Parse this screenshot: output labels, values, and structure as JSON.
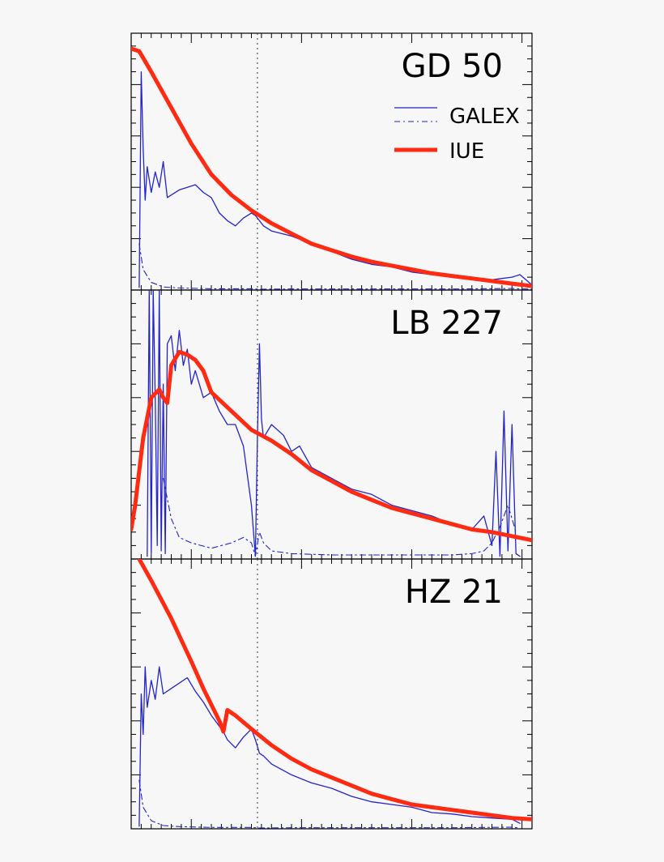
{
  "chart_data": [
    {
      "type": "line",
      "title": "GD 50",
      "legend": {
        "position": "top-right",
        "entries": [
          "GALEX",
          "IUE"
        ]
      },
      "xlim": [
        0,
        1
      ],
      "ylim": [
        0,
        1
      ],
      "grid": false,
      "marker_line_x": 0.315,
      "series": [
        {
          "name": "IUE",
          "color": "#ff2a12",
          "style": "solid-thick",
          "x": [
            0,
            0.02,
            0.05,
            0.1,
            0.15,
            0.2,
            0.25,
            0.3,
            0.35,
            0.4,
            0.45,
            0.5,
            0.55,
            0.6,
            0.65,
            0.7,
            0.75,
            0.8,
            0.85,
            0.9,
            0.95,
            1
          ],
          "y": [
            0.94,
            0.93,
            0.85,
            0.71,
            0.57,
            0.45,
            0.37,
            0.31,
            0.26,
            0.22,
            0.18,
            0.155,
            0.13,
            0.11,
            0.095,
            0.08,
            0.065,
            0.055,
            0.045,
            0.035,
            0.025,
            0.015
          ]
        },
        {
          "name": "GALEX",
          "color": "#2323cc",
          "style": "solid-thin",
          "x": [
            0.02,
            0.025,
            0.03,
            0.035,
            0.04,
            0.05,
            0.06,
            0.07,
            0.08,
            0.09,
            0.1,
            0.12,
            0.14,
            0.16,
            0.18,
            0.2,
            0.22,
            0.24,
            0.26,
            0.28,
            0.3,
            0.31,
            0.32,
            0.33,
            0.35,
            0.4,
            0.45,
            0.5,
            0.55,
            0.6,
            0.65,
            0.7,
            0.75,
            0.8,
            0.85,
            0.9,
            0.95,
            0.97,
            1
          ],
          "y": [
            0.01,
            0.85,
            0.55,
            0.35,
            0.48,
            0.38,
            0.46,
            0.4,
            0.5,
            0.36,
            0.37,
            0.39,
            0.4,
            0.41,
            0.38,
            0.36,
            0.3,
            0.27,
            0.25,
            0.28,
            0.3,
            0.29,
            0.27,
            0.25,
            0.23,
            0.21,
            0.18,
            0.15,
            0.12,
            0.1,
            0.09,
            0.07,
            0.06,
            0.05,
            0.04,
            0.04,
            0.05,
            0.06,
            0.02
          ]
        },
        {
          "name": "GALEX",
          "color": "#2323cc",
          "style": "dash-dot",
          "x": [
            0.02,
            0.03,
            0.05,
            0.08,
            0.12,
            0.2,
            0.3,
            0.31,
            0.32,
            0.4,
            0.6,
            0.8,
            0.95,
            1
          ],
          "y": [
            0.18,
            0.08,
            0.03,
            0.012,
            0.008,
            0.005,
            0.005,
            0.004,
            0.003,
            0.004,
            0.004,
            0.004,
            0.006,
            0.003
          ]
        }
      ]
    },
    {
      "type": "line",
      "title": "LB 227",
      "xlim": [
        0,
        1
      ],
      "ylim": [
        0,
        1
      ],
      "grid": false,
      "marker_line_x": 0.315,
      "series": [
        {
          "name": "IUE",
          "color": "#ff2a12",
          "style": "solid-thick",
          "x": [
            0,
            0.01,
            0.03,
            0.05,
            0.07,
            0.08,
            0.09,
            0.1,
            0.12,
            0.14,
            0.16,
            0.18,
            0.2,
            0.25,
            0.3,
            0.35,
            0.4,
            0.45,
            0.5,
            0.55,
            0.6,
            0.65,
            0.7,
            0.75,
            0.8,
            0.85,
            0.9,
            0.95,
            1
          ],
          "y": [
            0.11,
            0.2,
            0.45,
            0.6,
            0.63,
            0.6,
            0.58,
            0.72,
            0.77,
            0.76,
            0.74,
            0.7,
            0.62,
            0.55,
            0.48,
            0.44,
            0.39,
            0.33,
            0.29,
            0.25,
            0.22,
            0.19,
            0.17,
            0.15,
            0.13,
            0.11,
            0.1,
            0.085,
            0.07
          ]
        },
        {
          "name": "GALEX",
          "color": "#2323cc",
          "style": "solid-thin",
          "x": [
            0.04,
            0.045,
            0.05,
            0.055,
            0.06,
            0.065,
            0.07,
            0.075,
            0.08,
            0.085,
            0.09,
            0.1,
            0.11,
            0.12,
            0.13,
            0.14,
            0.15,
            0.16,
            0.18,
            0.2,
            0.22,
            0.24,
            0.26,
            0.28,
            0.3,
            0.31,
            0.315,
            0.32,
            0.325,
            0.33,
            0.35,
            0.38,
            0.4,
            0.42,
            0.45,
            0.5,
            0.55,
            0.6,
            0.65,
            0.7,
            0.75,
            0.8,
            0.85,
            0.88,
            0.9,
            0.91,
            0.92,
            0.93,
            0.94,
            0.95,
            0.96,
            0.97
          ],
          "y": [
            0.01,
            1.0,
            0.02,
            1.0,
            0.6,
            0.05,
            1.0,
            0.03,
            0.65,
            0.02,
            0.8,
            0.83,
            0.7,
            0.85,
            0.72,
            0.78,
            0.65,
            0.7,
            0.6,
            0.62,
            0.55,
            0.5,
            0.5,
            0.42,
            0.2,
            0.01,
            0.45,
            0.8,
            0.52,
            0.45,
            0.5,
            0.46,
            0.4,
            0.42,
            0.34,
            0.3,
            0.26,
            0.24,
            0.2,
            0.18,
            0.16,
            0.13,
            0.11,
            0.16,
            0.05,
            0.4,
            0.01,
            0.55,
            0.03,
            0.5,
            0.02,
            0.01
          ]
        },
        {
          "name": "GALEX",
          "color": "#2323cc",
          "style": "dash-dot",
          "x": [
            0.08,
            0.1,
            0.12,
            0.15,
            0.2,
            0.25,
            0.28,
            0.3,
            0.31,
            0.32,
            0.33,
            0.35,
            0.4,
            0.5,
            0.6,
            0.7,
            0.8,
            0.85,
            0.88,
            0.9,
            0.92,
            0.94,
            0.96
          ],
          "y": [
            0.3,
            0.15,
            0.08,
            0.06,
            0.04,
            0.06,
            0.08,
            0.06,
            0.01,
            0.1,
            0.06,
            0.03,
            0.02,
            0.015,
            0.015,
            0.015,
            0.015,
            0.02,
            0.03,
            0.06,
            0.12,
            0.2,
            0.1
          ]
        }
      ]
    },
    {
      "type": "line",
      "title": "HZ 21",
      "xlim": [
        0,
        1
      ],
      "ylim": [
        0,
        1
      ],
      "grid": false,
      "marker_line_x": 0.315,
      "series": [
        {
          "name": "IUE",
          "color": "#ff2a12",
          "style": "solid-thick",
          "x": [
            0.02,
            0.05,
            0.1,
            0.15,
            0.18,
            0.2,
            0.22,
            0.23,
            0.24,
            0.26,
            0.3,
            0.35,
            0.4,
            0.45,
            0.5,
            0.55,
            0.6,
            0.65,
            0.7,
            0.75,
            0.8,
            0.85,
            0.9,
            0.95,
            1
          ],
          "y": [
            1.0,
            0.92,
            0.78,
            0.62,
            0.52,
            0.46,
            0.4,
            0.36,
            0.44,
            0.42,
            0.37,
            0.31,
            0.26,
            0.22,
            0.19,
            0.16,
            0.13,
            0.11,
            0.09,
            0.08,
            0.07,
            0.06,
            0.05,
            0.04,
            0.035
          ]
        },
        {
          "name": "GALEX",
          "color": "#2323cc",
          "style": "solid-thin",
          "x": [
            0.02,
            0.025,
            0.03,
            0.035,
            0.04,
            0.05,
            0.06,
            0.07,
            0.08,
            0.1,
            0.12,
            0.14,
            0.16,
            0.18,
            0.2,
            0.22,
            0.23,
            0.24,
            0.26,
            0.28,
            0.3,
            0.31,
            0.32,
            0.33,
            0.35,
            0.4,
            0.45,
            0.5,
            0.55,
            0.6,
            0.65,
            0.7,
            0.75,
            0.8,
            0.85,
            0.9,
            0.95,
            0.97
          ],
          "y": [
            0.01,
            0.5,
            0.35,
            0.6,
            0.45,
            0.55,
            0.48,
            0.6,
            0.5,
            0.52,
            0.54,
            0.56,
            0.51,
            0.47,
            0.42,
            0.38,
            0.36,
            0.33,
            0.3,
            0.34,
            0.37,
            0.33,
            0.28,
            0.27,
            0.24,
            0.2,
            0.17,
            0.15,
            0.12,
            0.1,
            0.09,
            0.08,
            0.06,
            0.055,
            0.045,
            0.04,
            0.035,
            0.02
          ]
        },
        {
          "name": "GALEX",
          "color": "#2323cc",
          "style": "dash-dot",
          "x": [
            0.02,
            0.03,
            0.05,
            0.08,
            0.12,
            0.2,
            0.3,
            0.31,
            0.32,
            0.4,
            0.6,
            0.8,
            0.95,
            0.97
          ],
          "y": [
            0.18,
            0.08,
            0.03,
            0.012,
            0.008,
            0.005,
            0.005,
            0.004,
            0.003,
            0.004,
            0.004,
            0.004,
            0.006,
            0.003
          ]
        }
      ]
    }
  ]
}
